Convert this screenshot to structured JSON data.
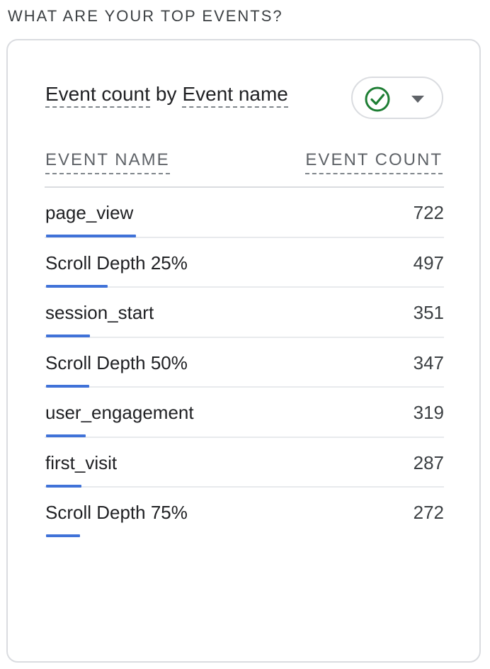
{
  "section_heading": "WHAT ARE YOUR TOP EVENTS?",
  "card": {
    "title_metric": "Event count",
    "title_by": "by",
    "title_dimension": "Event name",
    "compare_button": {
      "icon": "check-circle-icon",
      "dropdown_icon": "caret-down-icon",
      "accent_color": "#1e7e34"
    },
    "columns": {
      "name": "EVENT NAME",
      "count": "EVENT COUNT"
    },
    "bar_color": "#4072d8",
    "rows": [
      {
        "name": "page_view",
        "count": "722",
        "value": 722
      },
      {
        "name": "Scroll Depth 25%",
        "count": "497",
        "value": 497
      },
      {
        "name": "session_start",
        "count": "351",
        "value": 351
      },
      {
        "name": "Scroll Depth 50%",
        "count": "347",
        "value": 347
      },
      {
        "name": "user_engagement",
        "count": "319",
        "value": 319
      },
      {
        "name": "first_visit",
        "count": "287",
        "value": 287
      },
      {
        "name": "Scroll Depth 75%",
        "count": "272",
        "value": 272
      }
    ]
  }
}
